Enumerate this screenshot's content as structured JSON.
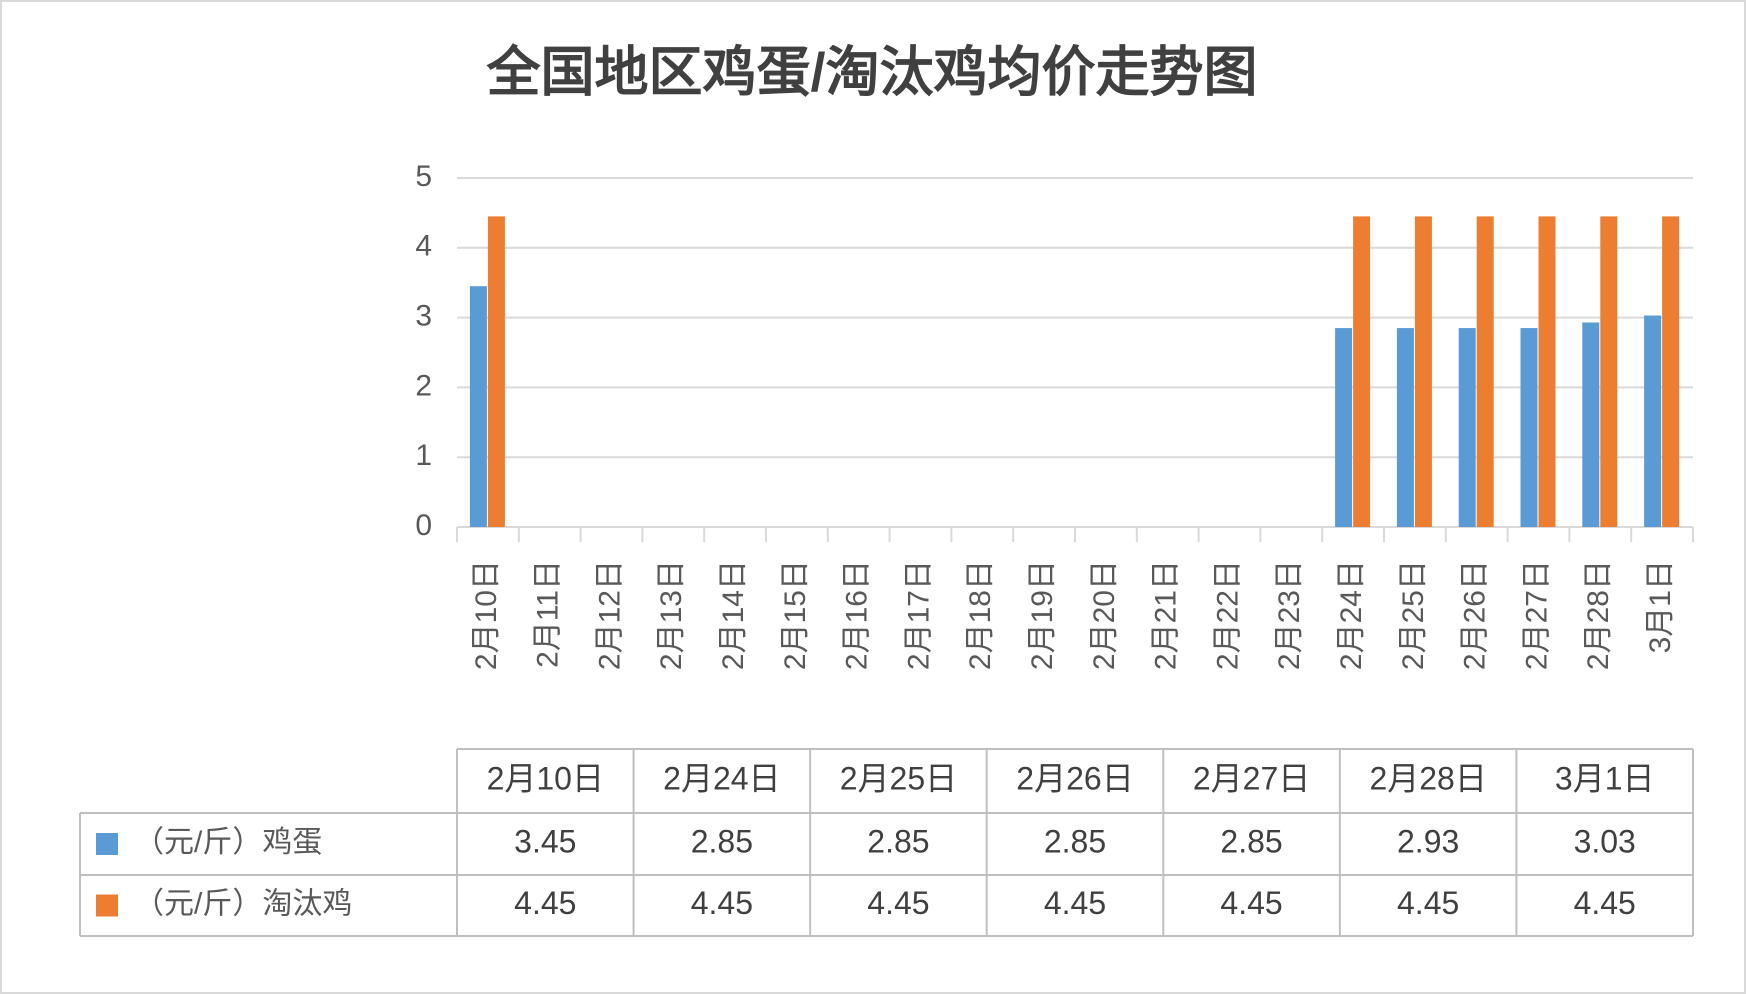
{
  "chart_data": {
    "type": "bar",
    "title": "全国地区鸡蛋/淘汰鸡均价走势图",
    "categories": [
      "2月10日",
      "2月11日",
      "2月12日",
      "2月13日",
      "2月14日",
      "2月15日",
      "2月16日",
      "2月17日",
      "2月18日",
      "2月19日",
      "2月20日",
      "2月21日",
      "2月22日",
      "2月23日",
      "2月24日",
      "2月25日",
      "2月26日",
      "2月27日",
      "2月28日",
      "3月1日"
    ],
    "series": [
      {
        "name": "（元/斤）鸡蛋",
        "color": "#5b9bd5",
        "values": [
          3.45,
          null,
          null,
          null,
          null,
          null,
          null,
          null,
          null,
          null,
          null,
          null,
          null,
          null,
          2.85,
          2.85,
          2.85,
          2.85,
          2.93,
          3.03
        ]
      },
      {
        "name": "（元/斤）淘汰鸡",
        "color": "#ed7d31",
        "values": [
          4.45,
          null,
          null,
          null,
          null,
          null,
          null,
          null,
          null,
          null,
          null,
          null,
          null,
          null,
          4.45,
          4.45,
          4.45,
          4.45,
          4.45,
          4.45
        ]
      }
    ],
    "ylim": [
      0,
      5
    ],
    "yticks": [
      0,
      1,
      2,
      3,
      4,
      5
    ],
    "grid": true,
    "data_table": true
  }
}
